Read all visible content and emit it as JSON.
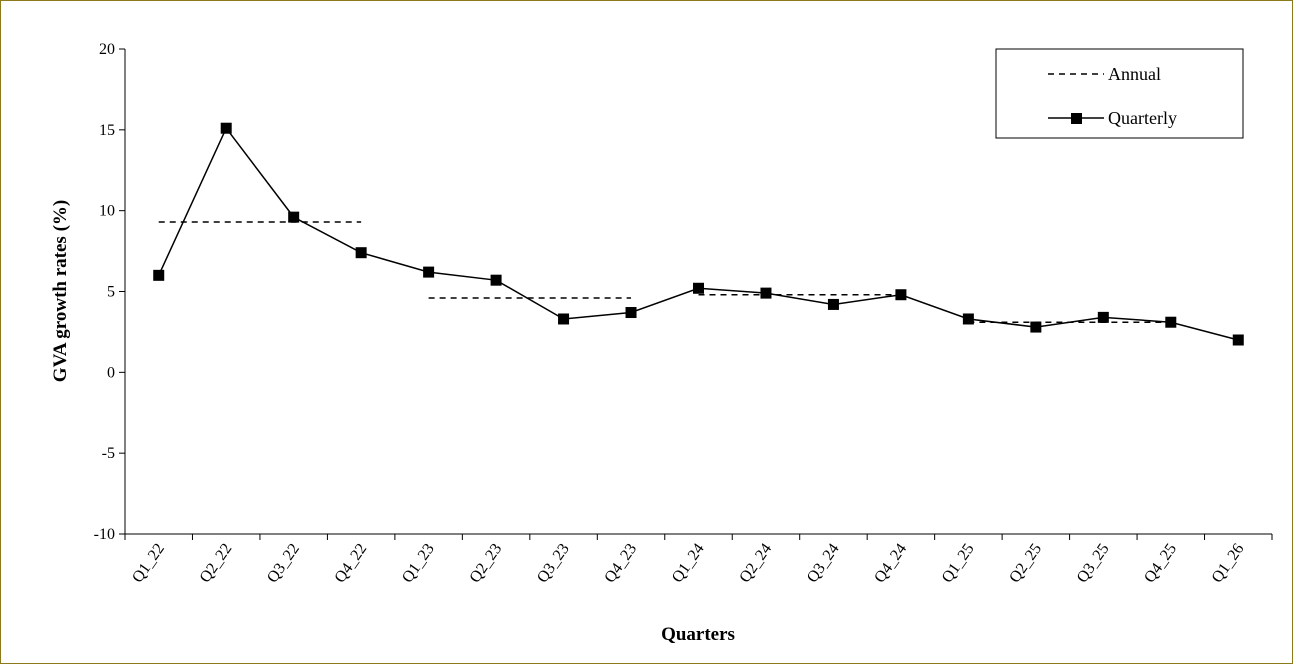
{
  "chart_data": {
    "type": "line",
    "title": "",
    "xlabel": "Quarters",
    "ylabel": "GVA growth rates (%)",
    "ylim": [
      -10,
      20
    ],
    "yticks": [
      -10,
      -5,
      0,
      5,
      10,
      15,
      20
    ],
    "grid": false,
    "legend_position": "top-right",
    "categories": [
      "Q1_22",
      "Q2_22",
      "Q3_22",
      "Q4_22",
      "Q1_23",
      "Q2_23",
      "Q3_23",
      "Q4_23",
      "Q1_24",
      "Q2_24",
      "Q3_24",
      "Q4_24",
      "Q1_25",
      "Q2_25",
      "Q3_25",
      "Q4_25",
      "Q1_26"
    ],
    "series": [
      {
        "name": "Annual",
        "style": "dashed",
        "color": "#000000",
        "segments": [
          {
            "from": "Q1_22",
            "to": "Q4_22",
            "value": 9.3
          },
          {
            "from": "Q1_23",
            "to": "Q4_23",
            "value": 4.6
          },
          {
            "from": "Q1_24",
            "to": "Q4_24",
            "value": 4.8
          },
          {
            "from": "Q1_25",
            "to": "Q4_25",
            "value": 3.1
          }
        ]
      },
      {
        "name": "Quarterly",
        "style": "solid",
        "marker": "square",
        "color": "#000000",
        "values": [
          6.0,
          15.1,
          9.6,
          7.4,
          6.2,
          5.7,
          3.3,
          3.7,
          5.2,
          4.9,
          4.2,
          4.8,
          3.3,
          2.8,
          3.4,
          3.1,
          2.0
        ]
      }
    ]
  }
}
